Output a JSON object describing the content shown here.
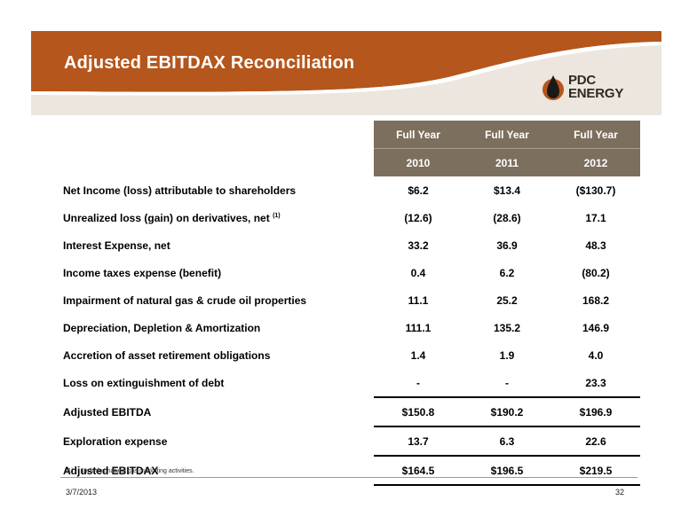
{
  "header": {
    "title": "Adjusted EBITDAX Reconciliation",
    "logo": {
      "line1": "PDC",
      "line2": "ENERGY"
    }
  },
  "table": {
    "column_headers": [
      "Full Year",
      "Full Year",
      "Full Year"
    ],
    "years": [
      "2010",
      "2011",
      "2012"
    ],
    "rows": [
      {
        "label": "Net Income (loss) attributable to shareholders",
        "values": [
          "$6.2",
          "$13.4",
          "($130.7)"
        ]
      },
      {
        "label": "Unrealized loss (gain) on derivatives, net",
        "sup": "(1)",
        "values": [
          "(12.6)",
          "(28.6)",
          "17.1"
        ]
      },
      {
        "label": "Interest Expense, net",
        "values": [
          "33.2",
          "36.9",
          "48.3"
        ]
      },
      {
        "label": "Income taxes expense (benefit)",
        "values": [
          "0.4",
          "6.2",
          "(80.2)"
        ]
      },
      {
        "label": "Impairment of natural gas & crude oil properties",
        "values": [
          "11.1",
          "25.2",
          "168.2"
        ]
      },
      {
        "label": "Depreciation, Depletion & Amortization",
        "values": [
          "111.1",
          "135.2",
          "146.9"
        ]
      },
      {
        "label": "Accretion of asset retirement obligations",
        "values": [
          "1.4",
          "1.9",
          "4.0"
        ]
      },
      {
        "label": "Loss on extinguishment of debt",
        "values": [
          "-",
          "-",
          "23.3"
        ]
      },
      {
        "label": "Adjusted EBITDA",
        "values": [
          "$150.8",
          "$190.2",
          "$196.9"
        ]
      },
      {
        "label": "Exploration expense",
        "values": [
          "13.7",
          "6.3",
          "22.6"
        ]
      },
      {
        "label": "Adjusted EBITDAX",
        "values": [
          "$164.5",
          "$196.5",
          "$219.5"
        ]
      }
    ]
  },
  "footnote": {
    "marker": "(1)",
    "text": "Includes natural gas marketing activities."
  },
  "footer": {
    "date": "3/7/2013",
    "page": "32"
  },
  "colors": {
    "banner": "#b5561c",
    "banner_light": "#ece6de",
    "header_fill": "#7d6f5d"
  }
}
